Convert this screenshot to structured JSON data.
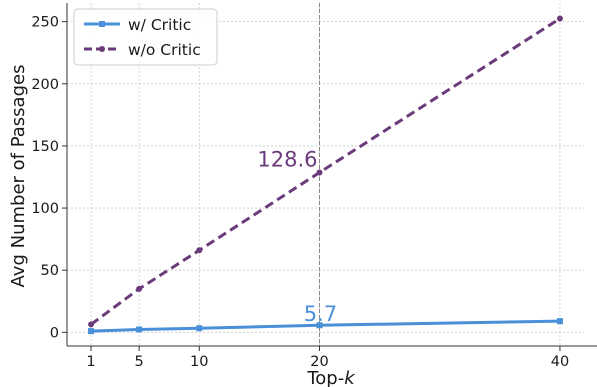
{
  "chart_data": {
    "type": "line",
    "xlabel_main": "Top-",
    "xlabel_italic": "k",
    "ylabel": "Avg Number of Passages",
    "x": [
      1,
      5,
      10,
      20,
      40
    ],
    "x_ticks": [
      "1",
      "5",
      "10",
      "20",
      "40"
    ],
    "y_ticks": [
      "0",
      "50",
      "100",
      "150",
      "200",
      "250"
    ],
    "xlim": [
      -1,
      42
    ],
    "ylim": [
      -11,
      265
    ],
    "grid": true,
    "legend_position": "top-left",
    "series": [
      {
        "name": "w/ Critic",
        "values": [
          1.0,
          2.3,
          3.3,
          5.7,
          9.0
        ],
        "color": "#4a90d9",
        "style": "solid",
        "marker": "square"
      },
      {
        "name": "w/o Critic",
        "values": [
          6.4,
          35.0,
          66.0,
          128.6,
          252.5
        ],
        "color": "#6b3a7a",
        "style": "dashed",
        "marker": "circle"
      }
    ],
    "vertical_reference_x": 20,
    "annotations": [
      {
        "text": "128.6",
        "x": 20,
        "y": 128.6,
        "color": "#6b3a7a"
      },
      {
        "text": "5.7",
        "x": 20,
        "y": 5.7,
        "color": "#4a90d9"
      }
    ]
  }
}
